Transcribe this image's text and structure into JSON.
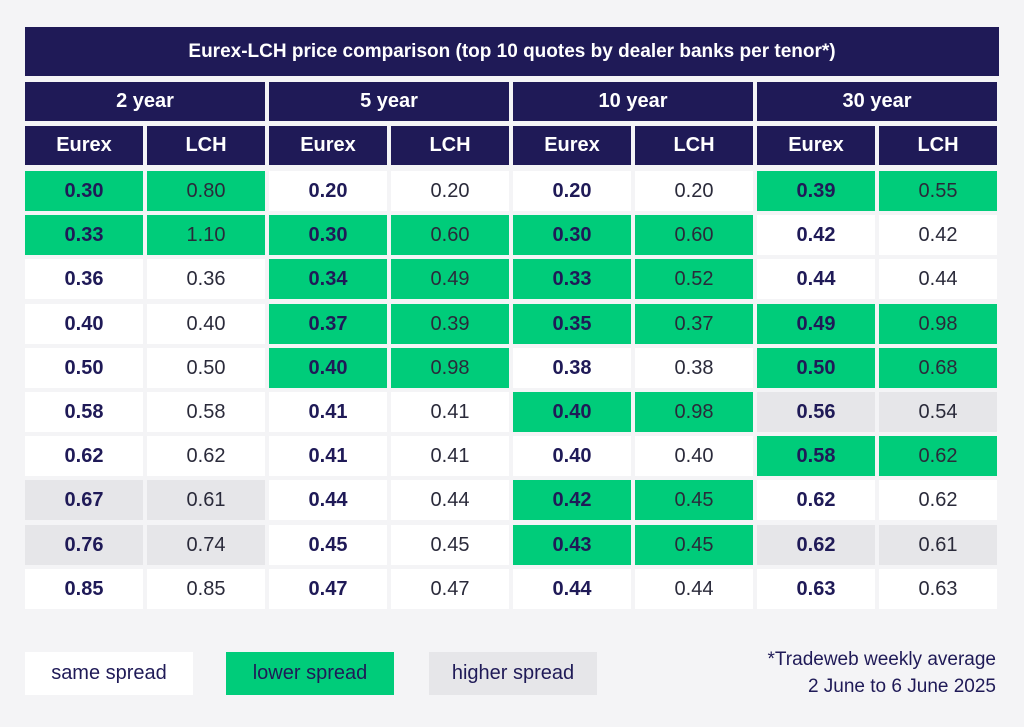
{
  "title": "Eurex-LCH price comparison (top 10 quotes by dealer banks per tenor*)",
  "colors": {
    "header": "#1f1a57",
    "same": "#ffffff",
    "lower": "#00cc7a",
    "higher": "#e6e6e9"
  },
  "chart_data": {
    "type": "table",
    "tenors": [
      "2 year",
      "5 year",
      "10 year",
      "30 year"
    ],
    "columns": [
      "Eurex",
      "LCH"
    ],
    "groups": [
      {
        "tenor": "2 year",
        "rows": [
          {
            "eurex": "0.30",
            "lch": "0.80",
            "cat": "lower"
          },
          {
            "eurex": "0.33",
            "lch": "1.10",
            "cat": "lower"
          },
          {
            "eurex": "0.36",
            "lch": "0.36",
            "cat": "same"
          },
          {
            "eurex": "0.40",
            "lch": "0.40",
            "cat": "same"
          },
          {
            "eurex": "0.50",
            "lch": "0.50",
            "cat": "same"
          },
          {
            "eurex": "0.58",
            "lch": "0.58",
            "cat": "same"
          },
          {
            "eurex": "0.62",
            "lch": "0.62",
            "cat": "same"
          },
          {
            "eurex": "0.67",
            "lch": "0.61",
            "cat": "higher"
          },
          {
            "eurex": "0.76",
            "lch": "0.74",
            "cat": "higher"
          },
          {
            "eurex": "0.85",
            "lch": "0.85",
            "cat": "same"
          }
        ]
      },
      {
        "tenor": "5 year",
        "rows": [
          {
            "eurex": "0.20",
            "lch": "0.20",
            "cat": "same"
          },
          {
            "eurex": "0.30",
            "lch": "0.60",
            "cat": "lower"
          },
          {
            "eurex": "0.34",
            "lch": "0.49",
            "cat": "lower"
          },
          {
            "eurex": "0.37",
            "lch": "0.39",
            "cat": "lower"
          },
          {
            "eurex": "0.40",
            "lch": "0.98",
            "cat": "lower"
          },
          {
            "eurex": "0.41",
            "lch": "0.41",
            "cat": "same"
          },
          {
            "eurex": "0.41",
            "lch": "0.41",
            "cat": "same"
          },
          {
            "eurex": "0.44",
            "lch": "0.44",
            "cat": "same"
          },
          {
            "eurex": "0.45",
            "lch": "0.45",
            "cat": "same"
          },
          {
            "eurex": "0.47",
            "lch": "0.47",
            "cat": "same"
          }
        ]
      },
      {
        "tenor": "10 year",
        "rows": [
          {
            "eurex": "0.20",
            "lch": "0.20",
            "cat": "same"
          },
          {
            "eurex": "0.30",
            "lch": "0.60",
            "cat": "lower"
          },
          {
            "eurex": "0.33",
            "lch": "0.52",
            "cat": "lower"
          },
          {
            "eurex": "0.35",
            "lch": "0.37",
            "cat": "lower"
          },
          {
            "eurex": "0.38",
            "lch": "0.38",
            "cat": "same"
          },
          {
            "eurex": "0.40",
            "lch": "0.98",
            "cat": "lower"
          },
          {
            "eurex": "0.40",
            "lch": "0.40",
            "cat": "same"
          },
          {
            "eurex": "0.42",
            "lch": "0.45",
            "cat": "lower"
          },
          {
            "eurex": "0.43",
            "lch": "0.45",
            "cat": "lower"
          },
          {
            "eurex": "0.44",
            "lch": "0.44",
            "cat": "same"
          }
        ]
      },
      {
        "tenor": "30 year",
        "rows": [
          {
            "eurex": "0.39",
            "lch": "0.55",
            "cat": "lower"
          },
          {
            "eurex": "0.42",
            "lch": "0.42",
            "cat": "same"
          },
          {
            "eurex": "0.44",
            "lch": "0.44",
            "cat": "same"
          },
          {
            "eurex": "0.49",
            "lch": "0.98",
            "cat": "lower"
          },
          {
            "eurex": "0.50",
            "lch": "0.68",
            "cat": "lower"
          },
          {
            "eurex": "0.56",
            "lch": "0.54",
            "cat": "higher"
          },
          {
            "eurex": "0.58",
            "lch": "0.62",
            "cat": "lower"
          },
          {
            "eurex": "0.62",
            "lch": "0.62",
            "cat": "same"
          },
          {
            "eurex": "0.62",
            "lch": "0.61",
            "cat": "higher"
          },
          {
            "eurex": "0.63",
            "lch": "0.63",
            "cat": "same"
          }
        ]
      }
    ]
  },
  "legend": {
    "same": "same spread",
    "lower": "lower spread",
    "higher": "higher spread"
  },
  "note": {
    "line1": "*Tradeweb weekly average",
    "line2": "2 June to 6 June 2025"
  }
}
